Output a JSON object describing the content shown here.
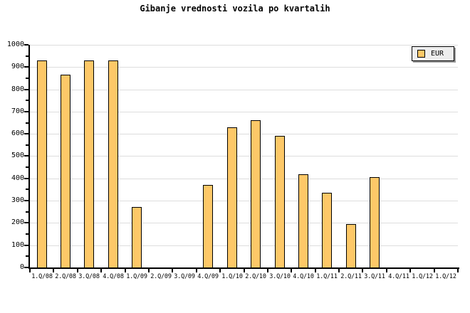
{
  "title": "Gibanje vrednosti vozila po kvartalih",
  "legend": {
    "label": "EUR"
  },
  "colors": {
    "bar_fill": "#FDC868",
    "bar_border": "#000000",
    "grid": "#DDDDDD",
    "axis": "#000000",
    "text": "#000000",
    "legend_bg": "#EEEEEE",
    "legend_border": "#000000",
    "legend_shadow": "#999999",
    "background": "#FFFFFF"
  },
  "chart_data": {
    "type": "bar",
    "title": "Gibanje vrednosti vozila po kvartalih",
    "categories": [
      "1.Q/08",
      "2.Q/08",
      "3.Q/08",
      "4.Q/08",
      "1.Q/09",
      "2.Q/09",
      "3.Q/09",
      "4.Q/09",
      "1.Q/10",
      "2.Q/10",
      "3.Q/10",
      "4.Q/10",
      "1.Q/11",
      "2.Q/11",
      "3.Q/11",
      "4.Q/11",
      "1.Q/12",
      "1.Q/12"
    ],
    "series": [
      {
        "name": "EUR",
        "values": [
          930,
          865,
          930,
          930,
          270,
          0,
          0,
          370,
          630,
          660,
          590,
          420,
          335,
          195,
          405,
          0,
          0,
          0
        ]
      }
    ],
    "xlabel": "",
    "ylabel": "",
    "ylim": [
      0,
      1000
    ],
    "ytick_major": 100,
    "ytick_minor": 50,
    "grid": true,
    "legend_position": "top-right"
  }
}
